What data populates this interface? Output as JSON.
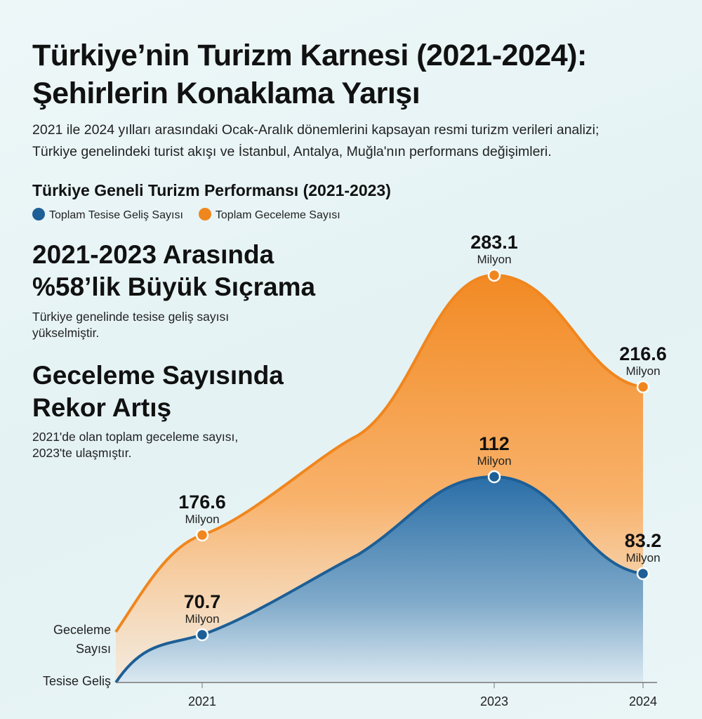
{
  "title_line1": "Türkiye’nin Turizm Karnesi (2021-2024):",
  "title_line2": "Şehirlerin Konaklama Yarışı",
  "subtitle_line1": "2021 ile 2024 yılları arasındaki Ocak-Aralık dönemlerini kapsayan resmi turizm verileri analizi;",
  "subtitle_line2": "Türkiye genelindeki turist akışı ve İstanbul, Antalya, Muğla'nın performans değişimleri.",
  "highlights": [
    {
      "title_line1": "2021-2023 Arasında",
      "title_line2": "%58’lik Büyük Sıçrama",
      "desc_line1": "Türkiye genelinde tesise geliş sayısı",
      "desc_line2": "yükselmiştir."
    },
    {
      "title_line1": "Geceleme Sayısında",
      "title_line2": "Rekor Artış",
      "desc_line1": "2021'de olan toplam geceleme sayısı,",
      "desc_line2": "2023'te ulaşmıştır."
    }
  ],
  "chart_data": {
    "type": "area",
    "title": "Türkiye Geneli Turizm Performansı (2021-2023)",
    "categories": [
      "2021",
      "2023",
      "2024"
    ],
    "unit": "Milyon",
    "series": [
      {
        "name": "Toplam Tesise Geliş Sayısı",
        "short_label": "Tesise Geliş",
        "color": "#1d5f96",
        "values": [
          70.7,
          112,
          83.2
        ],
        "labels": [
          "70.7",
          "112",
          "83.2"
        ]
      },
      {
        "name": "Toplam Geceleme Sayısı",
        "short_label_line1": "Geceleme",
        "short_label_line2": "Sayısı",
        "color": "#f0861e",
        "values": [
          176.6,
          283.1,
          216.6
        ],
        "labels": [
          "176.6",
          "283.1",
          "216.6"
        ]
      }
    ],
    "legend": "top-left"
  }
}
